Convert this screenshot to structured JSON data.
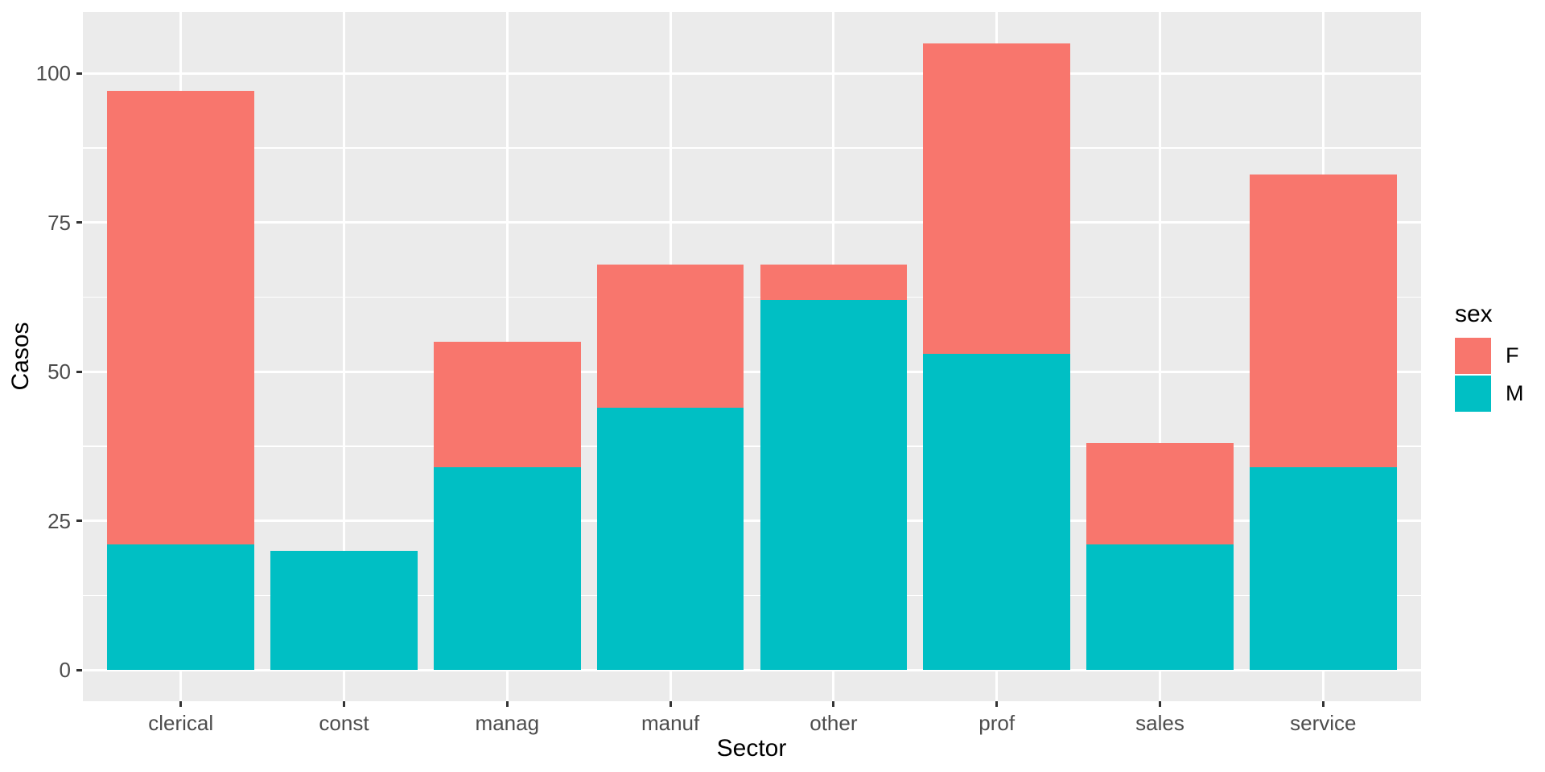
{
  "chart_data": {
    "type": "bar",
    "stacked": true,
    "orientation": "vertical",
    "title": "",
    "xlabel": "Sector",
    "ylabel": "Casos",
    "legend_title": "sex",
    "legend_position": "right",
    "categories": [
      "clerical",
      "const",
      "manag",
      "manuf",
      "other",
      "prof",
      "sales",
      "service"
    ],
    "series": [
      {
        "name": "F",
        "color": "#F8766D",
        "values": [
          76,
          0,
          21,
          24,
          6,
          52,
          17,
          49
        ]
      },
      {
        "name": "M",
        "color": "#00BFC4",
        "values": [
          21,
          20,
          34,
          44,
          62,
          53,
          21,
          34
        ]
      }
    ],
    "stack_order_bottom_to_top": [
      "M",
      "F"
    ],
    "y_ticks": [
      "0",
      "25",
      "50",
      "75",
      "100"
    ],
    "ylim": [
      0,
      105
    ],
    "grid": true,
    "colors": {
      "panel_background": "#EBEBEB",
      "grid": "#FFFFFF",
      "tick_text": "#4D4D4D",
      "axis_title_text": "#000000",
      "tick_mark": "#333333"
    }
  }
}
